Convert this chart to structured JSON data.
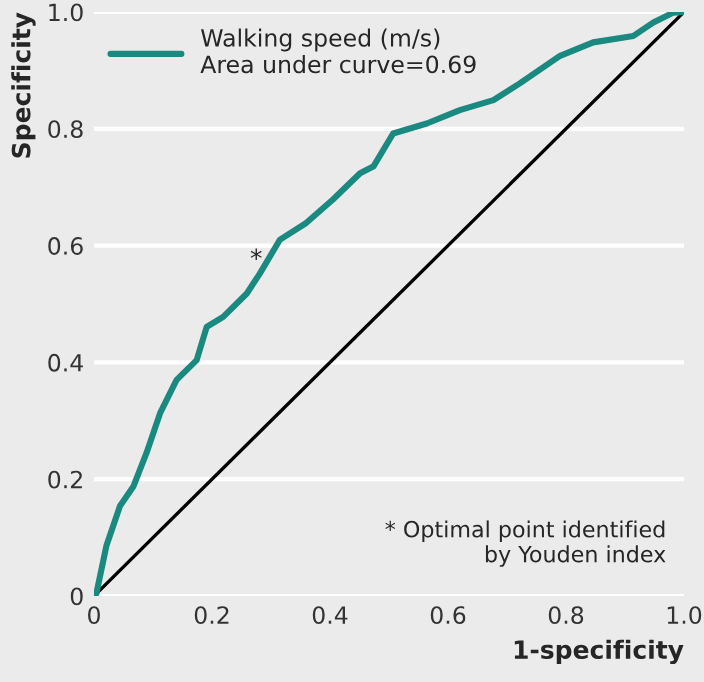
{
  "chart_data": {
    "type": "line",
    "xlabel": "1-specificity",
    "ylabel": "Specificity",
    "xlim": [
      0,
      1.0
    ],
    "ylim": [
      0,
      1.0
    ],
    "xticks": [
      {
        "value": 0,
        "label": "0"
      },
      0.2,
      0.4,
      0.6,
      0.8,
      {
        "value": 1.0,
        "label": "1.0"
      }
    ],
    "yticks": [
      {
        "value": 0,
        "label": "0"
      },
      0.2,
      0.4,
      0.6,
      0.8,
      {
        "value": 1.0,
        "label": "1.0"
      }
    ],
    "grid": "y",
    "legend": "top left",
    "marker": "none",
    "line_style": "solid",
    "series": [
      {
        "name": "Walking speed (m/s)\nArea under curve=0.69",
        "color": "#1a8a80",
        "x": [
          0,
          0.004,
          0.021,
          0.044,
          0.067,
          0.089,
          0.112,
          0.14,
          0.174,
          0.191,
          0.219,
          0.259,
          0.281,
          0.315,
          0.36,
          0.405,
          0.451,
          0.474,
          0.507,
          0.564,
          0.62,
          0.677,
          0.722,
          0.79,
          0.846,
          0.914,
          0.948,
          0.982,
          1.0
        ],
        "values": [
          0,
          0.004,
          0.086,
          0.154,
          0.188,
          0.245,
          0.313,
          0.37,
          0.404,
          0.461,
          0.478,
          0.518,
          0.552,
          0.61,
          0.639,
          0.679,
          0.724,
          0.736,
          0.792,
          0.809,
          0.832,
          0.849,
          0.878,
          0.925,
          0.948,
          0.959,
          0.982,
          0.999,
          1.0
        ]
      },
      {
        "color": "#000000",
        "x": [
          0,
          1.0
        ],
        "values": [
          0,
          1.0
        ]
      }
    ],
    "annotations": [
      {
        "text": "*",
        "x": 0.275,
        "y": 0.575
      },
      "* Optimal point identified\n  by Youden index"
    ]
  }
}
